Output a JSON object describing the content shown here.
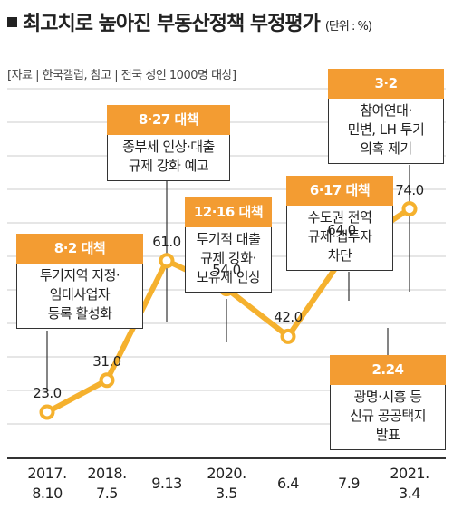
{
  "header": {
    "title": "최고치로 높아진 부동산정책 부정평가",
    "unit": "(단위 : %)",
    "source": "[자료 | 한국갤럽, 참고 | 전국 성인 1000명 대상]"
  },
  "colors": {
    "accent": "#f39c32",
    "line": "#f5b12e",
    "grid": "#cccccc",
    "text": "#222222"
  },
  "chart_data": {
    "type": "line",
    "categories": [
      "2017.\n8.10",
      "2018.\n7.5",
      "9.13",
      "2020.\n3.5",
      "6.4",
      "7.9",
      "2021.\n3.4"
    ],
    "x_labels": [
      [
        "2017.",
        "8.10"
      ],
      [
        "2018.",
        "7.5"
      ],
      [
        "",
        "9.13"
      ],
      [
        "2020.",
        "3.5"
      ],
      [
        "",
        "6.4"
      ],
      [
        "",
        "7.9"
      ],
      [
        "2021.",
        "3.4"
      ]
    ],
    "values": [
      23.0,
      31.0,
      61.0,
      54.0,
      42.0,
      64.0,
      74.0
    ],
    "value_labels": [
      "23.0",
      "31.0",
      "61.0",
      "54.0",
      "42.0",
      "64.0",
      "74.0"
    ],
    "ylim": [
      0,
      100
    ],
    "grid": true,
    "annotations": [
      {
        "point": 0,
        "head": "8·2 대책",
        "lines": [
          "투기지역 지정·",
          "임대사업자",
          "등록 활성화"
        ]
      },
      {
        "point": 2,
        "head": "8·27 대책",
        "lines": [
          "종부세 인상·대출",
          "규제 강화 예고"
        ]
      },
      {
        "point": 3,
        "head": "12·16 대책",
        "lines": [
          "투기적 대출",
          "규제 강화·",
          "보유세 인상"
        ]
      },
      {
        "point": 5,
        "head": "6·17 대책",
        "lines": [
          "수도권 전역",
          "규제·갭투자",
          "차단"
        ]
      },
      {
        "point": 6,
        "head": "3·2",
        "lines": [
          "참여연대·",
          "민변, LH 투기",
          "의혹 제기"
        ]
      },
      {
        "point": 5,
        "head": "2.24",
        "lines": [
          "광명·시흥 등",
          "신규 공공택지",
          "발표"
        ]
      }
    ]
  }
}
